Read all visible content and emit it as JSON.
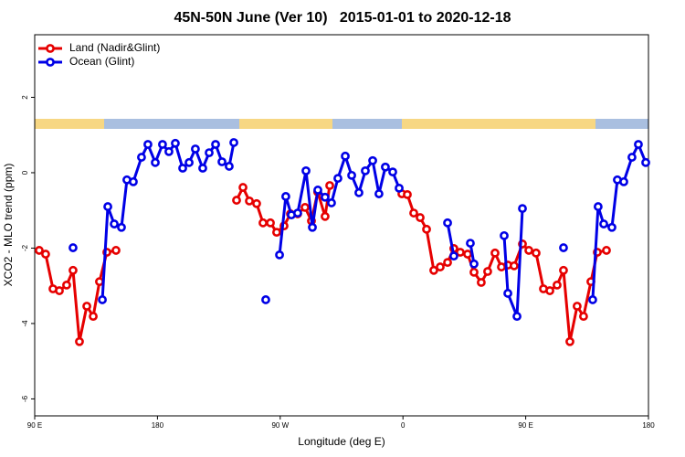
{
  "chart_data": {
    "type": "line",
    "title": "45N-50N June (Ver 10)   2015-01-01 to 2020-12-18",
    "x_label": "Longitude (deg E)",
    "y_label": "XCO2 - MLO trend (ppm)",
    "xlim": [
      90,
      540
    ],
    "ylim": [
      -6.45,
      3.66
    ],
    "xticks": [
      {
        "value": 90,
        "label": "90 E"
      },
      {
        "value": 180,
        "label": "180"
      },
      {
        "value": 270,
        "label": "90 W"
      },
      {
        "value": 360,
        "label": "0"
      },
      {
        "value": 450,
        "label": "90 E"
      },
      {
        "value": 540,
        "label": "180"
      }
    ],
    "yticks": [
      -6,
      -4,
      -2,
      0,
      2
    ],
    "legend": "top-left",
    "series": [
      {
        "name": "Land (Nadir&Glint)",
        "color": "#e60000",
        "x": [
          93.3,
          98.0,
          103.4,
          108.1,
          113.4,
          118.1,
          122.8,
          128.2,
          132.9,
          137.5,
          142.9,
          149.6,
          null,
          238.0,
          242.7,
          247.4,
          252.7,
          257.4,
          262.8,
          267.4,
          272.8,
          277.5,
          282.8,
          288.2,
          292.9,
          297.5,
          302.9,
          306.3,
          null,
          359.2,
          363.2,
          367.9,
          372.6,
          377.3,
          382.6,
          387.3,
          392.7,
          397.3,
          402.0,
          407.4,
          412.1,
          417.4,
          422.1,
          427.5,
          432.2,
          436.9,
          441.5,
          447.6,
          452.3,
          457.6,
          463.0,
          467.7,
          473.0,
          477.7,
          482.4,
          487.7,
          492.4,
          497.8,
          502.5,
          509.2
        ],
        "values": [
          -2.06,
          -2.16,
          -3.08,
          -3.13,
          -2.98,
          -2.59,
          -4.48,
          -3.54,
          -3.81,
          -2.89,
          -2.11,
          -2.06,
          null,
          -0.73,
          -0.39,
          -0.75,
          -0.82,
          -1.33,
          -1.33,
          -1.58,
          -1.41,
          -1.09,
          -1.09,
          -0.92,
          -1.28,
          -0.51,
          -1.16,
          -0.34,
          null,
          -0.56,
          -0.58,
          -1.07,
          -1.19,
          -1.5,
          -2.59,
          -2.5,
          -2.38,
          -2.01,
          -2.11,
          -2.16,
          -2.64,
          -2.91,
          -2.62,
          -2.13,
          -2.5,
          -2.45,
          -2.47,
          -1.89,
          -2.06,
          -2.13,
          -3.08,
          -3.13,
          -2.98,
          -2.59,
          -4.48,
          -3.54,
          -3.81,
          -2.89,
          -2.11,
          -2.06
        ]
      },
      {
        "name": "Ocean (Glint)",
        "color": "#0000e6",
        "x": [
          118.1,
          null,
          139.6,
          143.6,
          148.3,
          153.6,
          157.6,
          162.3,
          168.3,
          173.0,
          178.4,
          183.7,
          188.4,
          193.1,
          198.5,
          203.2,
          207.8,
          213.2,
          217.9,
          222.6,
          227.3,
          232.6,
          236.0,
          null,
          259.4,
          null,
          269.5,
          274.1,
          278.2,
          282.8,
          288.9,
          293.6,
          297.6,
          302.9,
          307.6,
          312.3,
          317.7,
          322.4,
          327.7,
          332.4,
          337.8,
          342.4,
          347.1,
          352.5,
          357.2,
          null,
          392.7,
          397.3,
          null,
          409.4,
          412.1,
          null,
          434.2,
          436.9,
          443.6,
          447.6,
          null,
          477.7,
          null,
          499.1,
          503.1,
          507.2,
          513.2,
          517.2,
          521.9,
          527.9,
          532.6,
          538.0
        ],
        "values": [
          -1.99,
          null,
          -3.37,
          -0.9,
          -1.36,
          -1.45,
          -0.19,
          -0.24,
          0.41,
          0.75,
          0.27,
          0.75,
          0.56,
          0.78,
          0.12,
          0.27,
          0.63,
          0.12,
          0.53,
          0.75,
          0.29,
          0.17,
          0.8,
          null,
          -3.37,
          null,
          -2.18,
          -0.63,
          -1.12,
          -1.07,
          0.05,
          -1.45,
          -0.46,
          -0.65,
          -0.8,
          -0.15,
          0.44,
          -0.07,
          -0.53,
          0.05,
          0.32,
          -0.56,
          0.15,
          0.02,
          -0.41,
          null,
          -1.33,
          -2.21,
          null,
          -1.87,
          -2.42,
          null,
          -1.67,
          -3.2,
          -3.81,
          -0.95,
          null,
          -1.99,
          null,
          -3.37,
          -0.9,
          -1.36,
          -1.45,
          -0.19,
          -0.24,
          0.41,
          0.75,
          0.27
        ]
      }
    ]
  }
}
